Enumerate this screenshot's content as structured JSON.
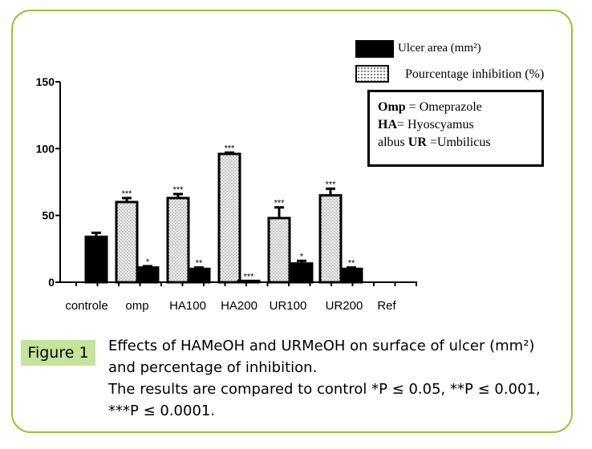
{
  "figure": {
    "label": "Figure 1",
    "caption_line1": "Effects of HAMeOH and URMeOH on surface of ulcer (mm²)",
    "caption_line2": "and percentage of inhibition.",
    "caption_line3": "The results are compared to control *P ≤ 0.05, **P ≤ 0.001,",
    "caption_line4": "***P ≤ 0.0001."
  },
  "note_box": {
    "omp_abbr": "Omp",
    "omp_text": " = Omeprazole",
    "ha_abbr": "HA",
    "ha_text": "= Hyoscyamus",
    "line3_text": "albus ",
    "ur_abbr": "UR",
    "ur_text": " =Umbilicus"
  },
  "chart_data": {
    "type": "bar",
    "categories": [
      "controle",
      "omp",
      "HA100",
      "HA200",
      "UR100",
      "UR200",
      "Ref"
    ],
    "ylim": [
      0,
      150
    ],
    "yticks": [
      0,
      50,
      100,
      150
    ],
    "legend_position": "top-right",
    "series": [
      {
        "name": "Ulcer area (mm²)",
        "fill": "solid-black",
        "values": [
          null,
          11,
          10,
          1,
          14,
          10,
          null
        ],
        "errors": [
          null,
          1,
          1,
          0,
          2,
          1,
          null
        ],
        "significance": [
          "",
          "*",
          "**",
          "***",
          "*",
          "**",
          ""
        ]
      },
      {
        "name": "Pourcentage inhibition (%)",
        "fill": "dotted",
        "values": [
          null,
          60,
          63,
          96,
          48,
          65,
          null
        ],
        "errors": [
          null,
          3,
          3,
          1,
          8,
          5,
          null
        ],
        "significance": [
          "",
          "***",
          "***",
          "***",
          "***",
          "***",
          ""
        ]
      }
    ],
    "control_value": 34,
    "control_error": 3
  }
}
